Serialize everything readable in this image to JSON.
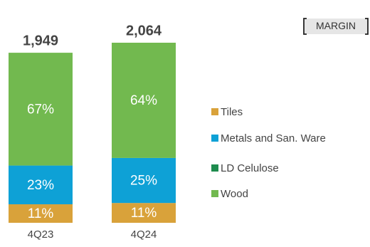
{
  "chart_data": {
    "type": "stacked_bar",
    "tag": "MARGIN",
    "categories": [
      "4Q23",
      "4Q24"
    ],
    "totals": [
      1949,
      2064
    ],
    "total_labels": [
      "1,949",
      "2,064"
    ],
    "series": [
      {
        "name": "Tiles",
        "color": "#d9a23a",
        "values": [
          11,
          11
        ],
        "value_labels": [
          "11%",
          "11%"
        ]
      },
      {
        "name": "Metals and San. Ware",
        "color": "#0ea1d6",
        "values": [
          23,
          25
        ],
        "value_labels": [
          "23%",
          "25%"
        ]
      },
      {
        "name": "LD Celulose",
        "color": "#1e8c4e",
        "values": [
          null,
          null
        ]
      },
      {
        "name": "Wood",
        "color": "#72b94f",
        "values": [
          67,
          64
        ],
        "value_labels": [
          "67%",
          "64%"
        ]
      }
    ],
    "legend": "right"
  }
}
